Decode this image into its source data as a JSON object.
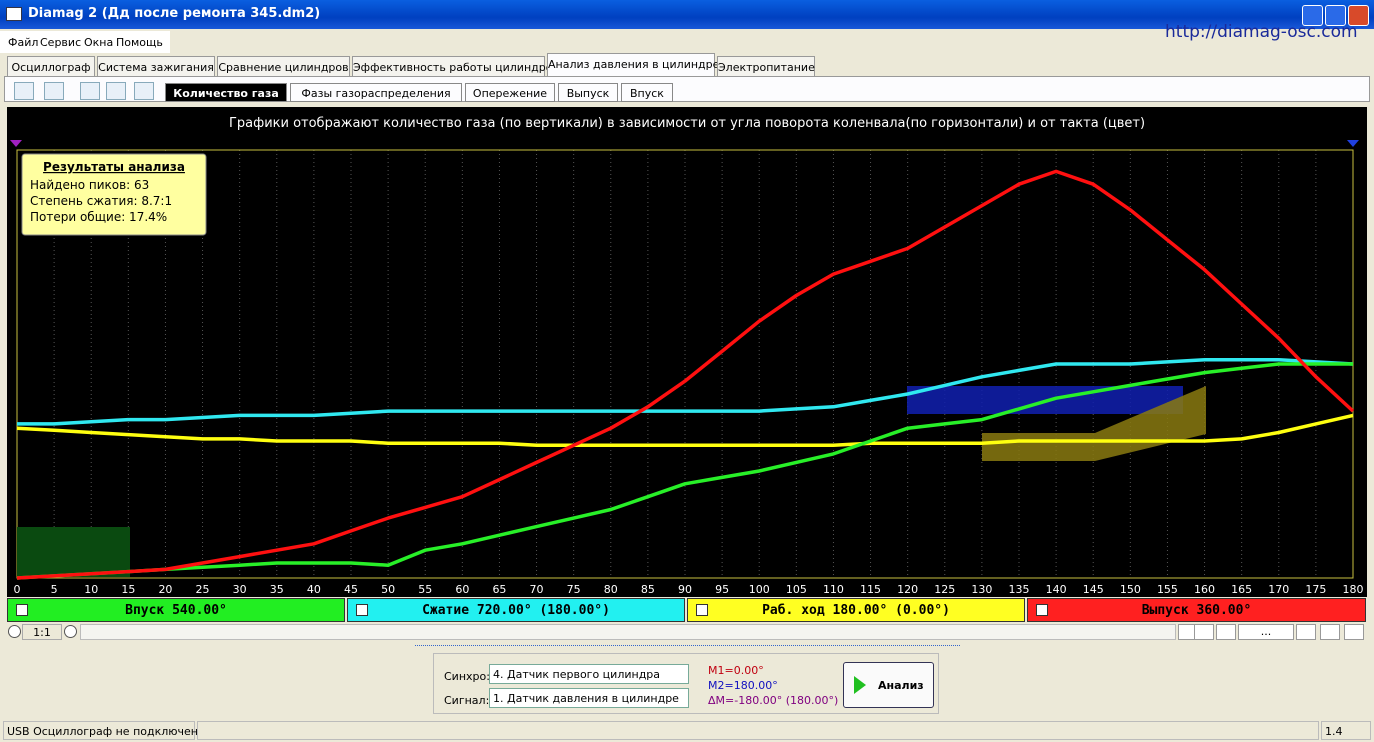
{
  "window": {
    "title": "Diamag 2 (Дд после ремонта  345.dm2)",
    "url": "http://diamag-osc.com"
  },
  "menu": [
    "Файл",
    "Сервис",
    "Окна",
    "Помощь"
  ],
  "tabs": [
    "Осциллограф",
    "Система зажигания",
    "Сравнение цилиндров",
    "Эффективность работы цилиндров",
    "Анализ давления в цилиндре",
    "Электропитание"
  ],
  "subtabs": [
    "Количество газа",
    "Фазы газораспределения",
    "Опережение",
    "Выпуск",
    "Впуск"
  ],
  "chart_data": {
    "type": "line",
    "title": "Графики отображают количество газа (по вертикали) в зависимости от угла поворота коленвала(по горизонтали) и от такта (цвет)",
    "info_box": {
      "title": "Результаты анализа",
      "lines": [
        "Найдено пиков: 63",
        "Степень сжатия: 8.7:1",
        "Потери общие: 17.4%"
      ]
    },
    "x": [
      0,
      5,
      10,
      15,
      20,
      25,
      30,
      35,
      40,
      45,
      50,
      55,
      60,
      65,
      70,
      75,
      80,
      85,
      90,
      95,
      100,
      105,
      110,
      115,
      120,
      125,
      130,
      135,
      140,
      145,
      150,
      155,
      160,
      165,
      170,
      175,
      180
    ],
    "xlim": [
      0,
      180
    ],
    "xticks": [
      0,
      5,
      10,
      15,
      20,
      25,
      30,
      35,
      40,
      45,
      50,
      55,
      60,
      65,
      70,
      75,
      80,
      85,
      90,
      95,
      100,
      105,
      110,
      115,
      120,
      125,
      130,
      135,
      140,
      145,
      150,
      155,
      160,
      165,
      170,
      175,
      180
    ],
    "ylim": [
      0,
      100
    ],
    "grid": true,
    "series": [
      {
        "color": "#ff1010",
        "values": [
          0,
          0.5,
          1,
          1.5,
          2,
          3.5,
          5,
          6.5,
          8,
          11,
          14,
          16.5,
          19,
          23,
          27,
          31,
          35,
          40,
          46,
          53,
          60,
          66,
          71,
          74,
          77,
          82,
          87,
          92,
          95,
          92,
          86,
          79,
          72,
          64,
          56,
          47,
          39
        ]
      },
      {
        "color": "#30e8f0",
        "values": [
          36,
          36,
          36.5,
          37,
          37,
          37.5,
          38,
          38,
          38,
          38.5,
          39,
          39,
          39,
          39,
          39,
          39,
          39,
          39,
          39,
          39,
          39,
          39.5,
          40,
          41.5,
          43,
          45,
          47,
          48.5,
          50,
          50,
          50,
          50.5,
          51,
          51,
          51,
          50.5,
          50
        ]
      },
      {
        "color": "#ffff10",
        "values": [
          35,
          34.5,
          34,
          33.5,
          33,
          32.5,
          32.5,
          32,
          32,
          32,
          31.5,
          31.5,
          31.5,
          31.5,
          31,
          31,
          31,
          31,
          31,
          31,
          31,
          31,
          31,
          31.5,
          31.5,
          31.5,
          31.5,
          32,
          32,
          32,
          32,
          32,
          32,
          32.5,
          34,
          36,
          38
        ]
      },
      {
        "color": "#28f028",
        "values": [
          0,
          0.5,
          1,
          1.5,
          2,
          2.5,
          3,
          3.5,
          3.5,
          3.5,
          3,
          6.5,
          8,
          10,
          12,
          14,
          16,
          19,
          22,
          23.5,
          25,
          27,
          29,
          32,
          35,
          36,
          37,
          39.5,
          42,
          43.5,
          45,
          46.5,
          48,
          49,
          50,
          50,
          50
        ]
      }
    ]
  },
  "phases": [
    {
      "label": "Впуск 540.00°",
      "color": "#22ee22"
    },
    {
      "label": "Сжатие 720.00° (180.00°)",
      "color": "#22f0f0"
    },
    {
      "label": "Раб. ход 180.00° (0.00°)",
      "color": "#ffff22"
    },
    {
      "label": "Выпуск 360.00°",
      "color": "#ff2020"
    }
  ],
  "zoom": "1:1",
  "scroll_label": "...",
  "controls": {
    "sync_label": "Синхро:",
    "sync_value": "4. Датчик первого цилиндра",
    "signal_label": "Сигнал:",
    "signal_value": "1. Датчик давления в цилиндре",
    "m1": "M1=0.00°",
    "m2": "M2=180.00°",
    "dm": "ΔM=-180.00° (180.00°)",
    "button": "Анализ"
  },
  "status": {
    "left": "USB Осциллограф не подключен",
    "right": "1.4"
  }
}
